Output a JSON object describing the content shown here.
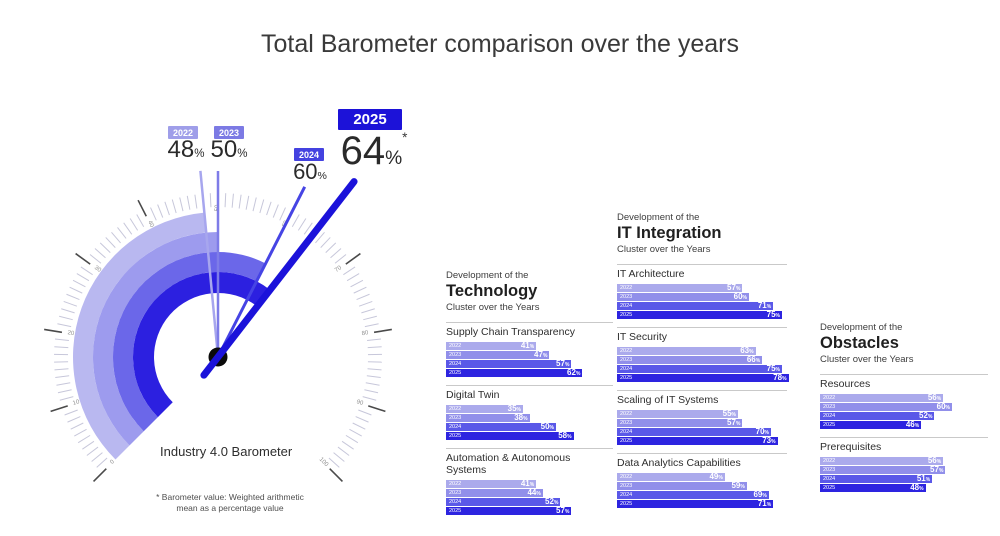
{
  "title": "Total Barometer comparison over the years",
  "style": {
    "years": [
      {
        "label": "2022",
        "bar_color": "#abaaec",
        "badge_color": "#9f9ee9",
        "band_color": "#b9b8f0",
        "needle_color": "#a7a6ee"
      },
      {
        "label": "2023",
        "bar_color": "#918fea",
        "badge_color": "#7c7ae4",
        "band_color": "#9d9bee",
        "needle_color": "#7e7ce8"
      },
      {
        "label": "2024",
        "bar_color": "#5a58e8",
        "badge_color": "#4442e0",
        "band_color": "#6b67e9",
        "needle_color": "#4644e4"
      },
      {
        "label": "2025",
        "bar_color": "#2d24e0",
        "badge_color": "#1c12d8",
        "band_color": "#2c20e0",
        "needle_color": "#1b12da"
      }
    ],
    "tick_minor_color": "#c7c7da",
    "tick_major_color": "#4a4a4a",
    "tick_label_color": "#8f8f8f",
    "hub_color": "#0a0a0a"
  },
  "gauge": {
    "label": "Industry 4.0 Barometer",
    "footnote_line1": "* Barometer value: Weighted arithmetic",
    "footnote_line2": "mean as a percentage value",
    "unit": "%",
    "asterisk": "*"
  },
  "chart_data": [
    {
      "type": "gauge",
      "title": "Industry 4.0 Barometer",
      "min": 0,
      "max": 100,
      "tick_step_minor": 1,
      "tick_step_major": 10,
      "unit": "%",
      "series": [
        {
          "name": "2022",
          "value": 48
        },
        {
          "name": "2023",
          "value": 50
        },
        {
          "name": "2024",
          "value": 60
        },
        {
          "name": "2025",
          "value": 64,
          "annotation": "*"
        }
      ],
      "footnote": "* Barometer value: Weighted arithmetic mean as a percentage value"
    },
    {
      "type": "bar",
      "orientation": "horizontal",
      "pretitle": "Development of the",
      "title": "Technology",
      "subtitle": "Cluster over the Years",
      "unit": "%",
      "years": [
        "2022",
        "2023",
        "2024",
        "2025"
      ],
      "groups": [
        {
          "label": "Supply Chain Transparency",
          "values": [
            41,
            47,
            57,
            62
          ]
        },
        {
          "label": "Digital Twin",
          "values": [
            35,
            38,
            50,
            58
          ]
        },
        {
          "label": "Automation & Autonomous Systems",
          "values": [
            41,
            44,
            52,
            57
          ]
        }
      ]
    },
    {
      "type": "bar",
      "orientation": "horizontal",
      "pretitle": "Development of the",
      "title": "IT Integration",
      "subtitle": "Cluster over the Years",
      "unit": "%",
      "years": [
        "2022",
        "2023",
        "2024",
        "2025"
      ],
      "groups": [
        {
          "label": "IT Architecture",
          "values": [
            57,
            60,
            71,
            75
          ]
        },
        {
          "label": "IT Security",
          "values": [
            63,
            66,
            75,
            78
          ]
        },
        {
          "label": "Scaling of IT Systems",
          "values": [
            55,
            57,
            70,
            73
          ]
        },
        {
          "label": "Data Analytics Capabilities",
          "values": [
            49,
            59,
            69,
            71
          ]
        }
      ]
    },
    {
      "type": "bar",
      "orientation": "horizontal",
      "pretitle": "Development of the",
      "title": "Obstacles",
      "subtitle": "Cluster over the Years",
      "unit": "%",
      "years": [
        "2022",
        "2023",
        "2024",
        "2025"
      ],
      "groups": [
        {
          "label": "Resources",
          "values": [
            56,
            60,
            52,
            46
          ]
        },
        {
          "label": "Prerequisites",
          "values": [
            56,
            57,
            51,
            48
          ]
        }
      ]
    }
  ]
}
